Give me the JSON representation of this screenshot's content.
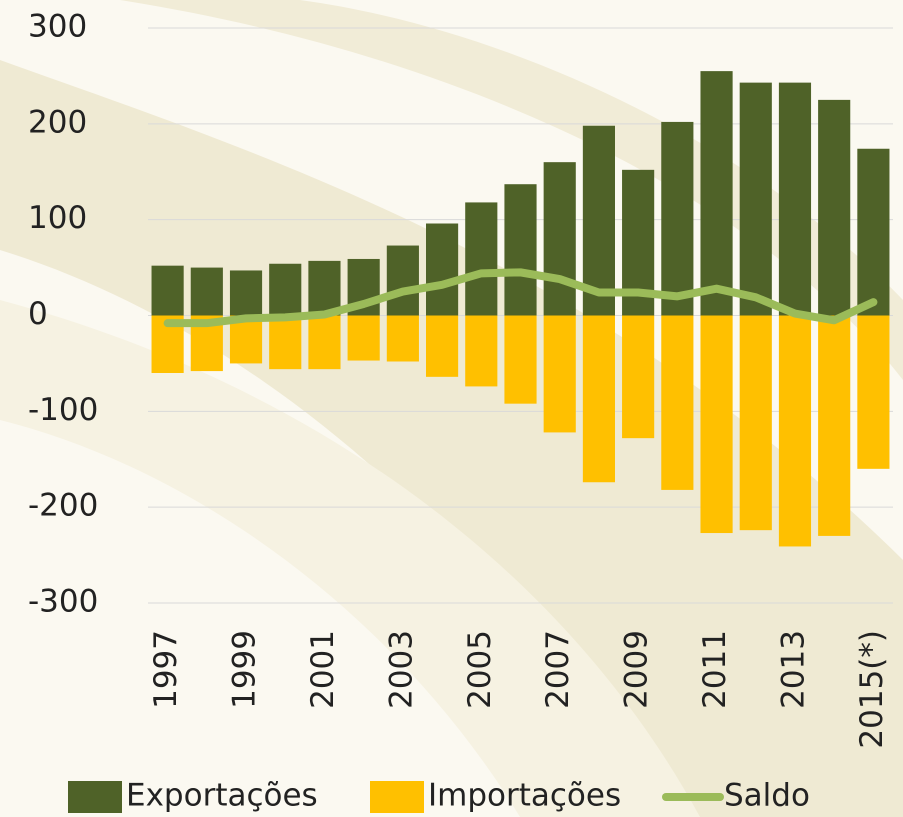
{
  "chart_data": {
    "type": "bar_line",
    "categories": [
      "1997",
      null,
      "1999",
      null,
      "2001",
      null,
      "2003",
      null,
      "2005",
      null,
      "2007",
      null,
      "2009",
      null,
      "2011",
      null,
      "2013",
      null,
      "2015(*)"
    ],
    "series": [
      {
        "name": "Exportações",
        "type": "bar",
        "color": "#4f6228",
        "values": [
          52,
          50,
          47,
          54,
          57,
          59,
          73,
          96,
          118,
          137,
          160,
          198,
          152,
          202,
          255,
          243,
          243,
          225,
          174
        ]
      },
      {
        "name": "Importações",
        "type": "bar",
        "color": "#ffc000",
        "values": [
          -60,
          -58,
          -50,
          -56,
          -56,
          -47,
          -48,
          -64,
          -74,
          -92,
          -122,
          -174,
          -128,
          -182,
          -227,
          -224,
          -241,
          -230,
          -160
        ]
      },
      {
        "name": "Saldo",
        "type": "line",
        "color": "#9bbb59",
        "values": [
          -8,
          -8,
          -3,
          -2,
          1,
          12,
          25,
          32,
          44,
          45,
          38,
          24,
          24,
          20,
          28,
          19,
          2,
          -5,
          14
        ]
      }
    ],
    "ylim": [
      -300,
      300
    ],
    "yticks": [
      -300,
      -200,
      -100,
      0,
      100,
      200,
      300
    ],
    "grid": true,
    "legend": "bottom"
  }
}
